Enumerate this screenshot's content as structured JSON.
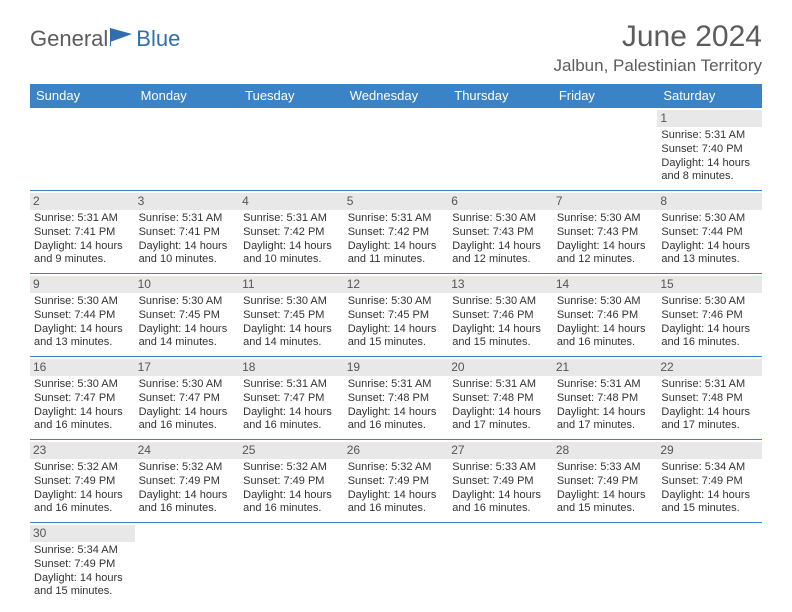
{
  "brand": {
    "general": "General",
    "blue": "Blue"
  },
  "title": "June 2024",
  "location": "Jalbun, Palestinian Territory",
  "header_bg": "#3b83c7",
  "columns": [
    "Sunday",
    "Monday",
    "Tuesday",
    "Wednesday",
    "Thursday",
    "Friday",
    "Saturday"
  ],
  "labels": {
    "sunrise": "Sunrise:",
    "sunset": "Sunset:",
    "daylight": "Daylight:"
  },
  "weeks": [
    [
      null,
      null,
      null,
      null,
      null,
      null,
      {
        "n": "1",
        "sr": "5:31 AM",
        "ss": "7:40 PM",
        "dl": "14 hours and 8 minutes."
      }
    ],
    [
      {
        "n": "2",
        "sr": "5:31 AM",
        "ss": "7:41 PM",
        "dl": "14 hours and 9 minutes."
      },
      {
        "n": "3",
        "sr": "5:31 AM",
        "ss": "7:41 PM",
        "dl": "14 hours and 10 minutes."
      },
      {
        "n": "4",
        "sr": "5:31 AM",
        "ss": "7:42 PM",
        "dl": "14 hours and 10 minutes."
      },
      {
        "n": "5",
        "sr": "5:31 AM",
        "ss": "7:42 PM",
        "dl": "14 hours and 11 minutes."
      },
      {
        "n": "6",
        "sr": "5:30 AM",
        "ss": "7:43 PM",
        "dl": "14 hours and 12 minutes."
      },
      {
        "n": "7",
        "sr": "5:30 AM",
        "ss": "7:43 PM",
        "dl": "14 hours and 12 minutes."
      },
      {
        "n": "8",
        "sr": "5:30 AM",
        "ss": "7:44 PM",
        "dl": "14 hours and 13 minutes."
      }
    ],
    [
      {
        "n": "9",
        "sr": "5:30 AM",
        "ss": "7:44 PM",
        "dl": "14 hours and 13 minutes."
      },
      {
        "n": "10",
        "sr": "5:30 AM",
        "ss": "7:45 PM",
        "dl": "14 hours and 14 minutes."
      },
      {
        "n": "11",
        "sr": "5:30 AM",
        "ss": "7:45 PM",
        "dl": "14 hours and 14 minutes."
      },
      {
        "n": "12",
        "sr": "5:30 AM",
        "ss": "7:45 PM",
        "dl": "14 hours and 15 minutes."
      },
      {
        "n": "13",
        "sr": "5:30 AM",
        "ss": "7:46 PM",
        "dl": "14 hours and 15 minutes."
      },
      {
        "n": "14",
        "sr": "5:30 AM",
        "ss": "7:46 PM",
        "dl": "14 hours and 16 minutes."
      },
      {
        "n": "15",
        "sr": "5:30 AM",
        "ss": "7:46 PM",
        "dl": "14 hours and 16 minutes."
      }
    ],
    [
      {
        "n": "16",
        "sr": "5:30 AM",
        "ss": "7:47 PM",
        "dl": "14 hours and 16 minutes."
      },
      {
        "n": "17",
        "sr": "5:30 AM",
        "ss": "7:47 PM",
        "dl": "14 hours and 16 minutes."
      },
      {
        "n": "18",
        "sr": "5:31 AM",
        "ss": "7:47 PM",
        "dl": "14 hours and 16 minutes."
      },
      {
        "n": "19",
        "sr": "5:31 AM",
        "ss": "7:48 PM",
        "dl": "14 hours and 16 minutes."
      },
      {
        "n": "20",
        "sr": "5:31 AM",
        "ss": "7:48 PM",
        "dl": "14 hours and 17 minutes."
      },
      {
        "n": "21",
        "sr": "5:31 AM",
        "ss": "7:48 PM",
        "dl": "14 hours and 17 minutes."
      },
      {
        "n": "22",
        "sr": "5:31 AM",
        "ss": "7:48 PM",
        "dl": "14 hours and 17 minutes."
      }
    ],
    [
      {
        "n": "23",
        "sr": "5:32 AM",
        "ss": "7:49 PM",
        "dl": "14 hours and 16 minutes."
      },
      {
        "n": "24",
        "sr": "5:32 AM",
        "ss": "7:49 PM",
        "dl": "14 hours and 16 minutes."
      },
      {
        "n": "25",
        "sr": "5:32 AM",
        "ss": "7:49 PM",
        "dl": "14 hours and 16 minutes."
      },
      {
        "n": "26",
        "sr": "5:32 AM",
        "ss": "7:49 PM",
        "dl": "14 hours and 16 minutes."
      },
      {
        "n": "27",
        "sr": "5:33 AM",
        "ss": "7:49 PM",
        "dl": "14 hours and 16 minutes."
      },
      {
        "n": "28",
        "sr": "5:33 AM",
        "ss": "7:49 PM",
        "dl": "14 hours and 15 minutes."
      },
      {
        "n": "29",
        "sr": "5:34 AM",
        "ss": "7:49 PM",
        "dl": "14 hours and 15 minutes."
      }
    ],
    [
      {
        "n": "30",
        "sr": "5:34 AM",
        "ss": "7:49 PM",
        "dl": "14 hours and 15 minutes."
      },
      null,
      null,
      null,
      null,
      null,
      null
    ]
  ]
}
